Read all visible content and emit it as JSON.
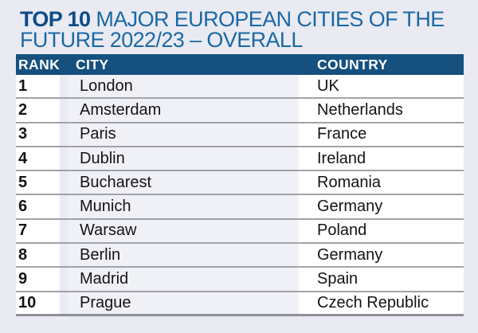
{
  "title": {
    "highlight": "TOP 10",
    "line1_rest": " MAJOR EUROPEAN CITIES OF THE",
    "line2": "FUTURE 2022/23 – OVERALL"
  },
  "chart_data": {
    "type": "table",
    "title": "TOP 10 MAJOR EUROPEAN CITIES OF THE FUTURE 2022/23 – OVERALL",
    "columns": [
      "RANK",
      "CITY",
      "COUNTRY"
    ],
    "rows": [
      {
        "rank": "1",
        "city": "London",
        "country": "UK"
      },
      {
        "rank": "2",
        "city": "Amsterdam",
        "country": "Netherlands"
      },
      {
        "rank": "3",
        "city": "Paris",
        "country": "France"
      },
      {
        "rank": "4",
        "city": "Dublin",
        "country": "Ireland"
      },
      {
        "rank": "5",
        "city": "Bucharest",
        "country": "Romania"
      },
      {
        "rank": "6",
        "city": "Munich",
        "country": "Germany"
      },
      {
        "rank": "7",
        "city": "Warsaw",
        "country": "Poland"
      },
      {
        "rank": "8",
        "city": "Berlin",
        "country": "Germany"
      },
      {
        "rank": "9",
        "city": "Madrid",
        "country": "Spain"
      },
      {
        "rank": "10",
        "city": "Prague",
        "country": "Czech Republic"
      }
    ]
  },
  "colors": {
    "page_bg": "#e9eaf2",
    "header_bar": "#15507f",
    "title_highlight": "#0d4b87",
    "title_text": "#1b68a4",
    "row_separator": "#a2a2aa",
    "city_column_bg": "#f0f1f7",
    "row_bg": "#ffffff",
    "text": "#141414"
  }
}
